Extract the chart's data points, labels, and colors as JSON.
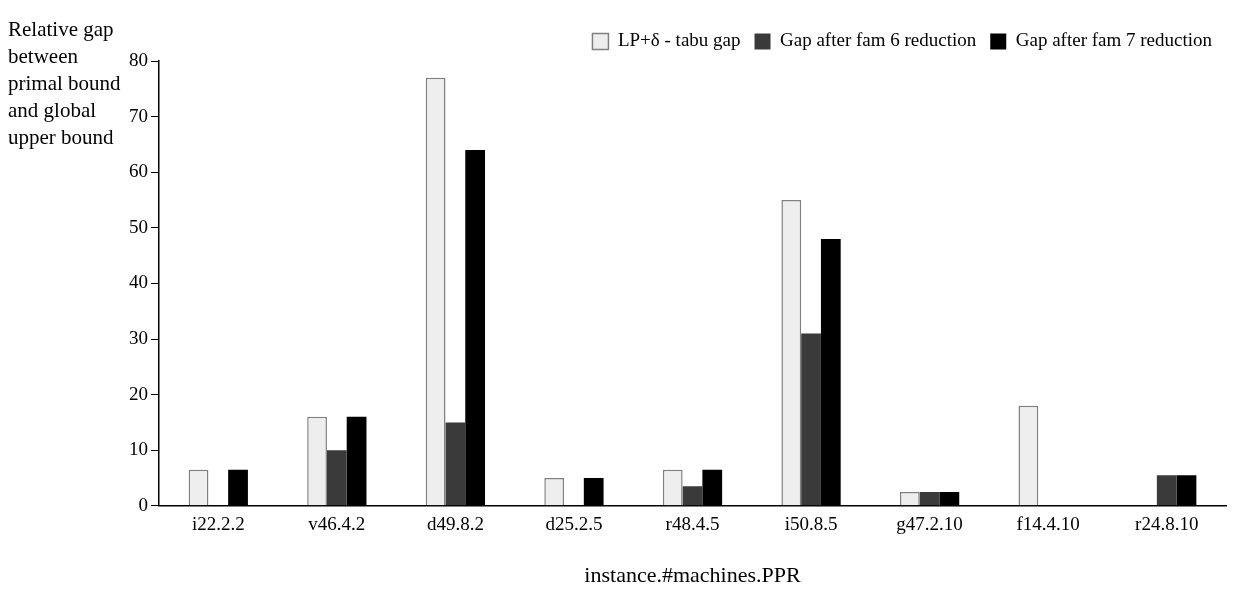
{
  "chart_data": {
    "type": "bar",
    "xlabel": "instance.#machines.PPR",
    "ylabel": "Relative gap between primal bound and global upper bound",
    "categories": [
      "i22.2.2",
      "v46.4.2",
      "d49.8.2",
      "d25.2.5",
      "r48.4.5",
      "i50.8.5",
      "g47.2.10",
      "f14.4.10",
      "r24.8.10"
    ],
    "series": [
      {
        "name": "LP+δ - tabu gap",
        "color": "#eeeeee",
        "values": [
          6.5,
          16,
          77,
          5,
          6.5,
          55,
          2.5,
          18,
          0
        ]
      },
      {
        "name": "Gap after fam 6 reduction",
        "color": "#3a3a3a",
        "values": [
          0,
          10,
          15,
          0,
          3.5,
          31,
          2.5,
          0,
          5.5
        ]
      },
      {
        "name": "Gap after fam 7 reduction",
        "color": "#000000",
        "values": [
          6.5,
          16,
          64,
          5,
          6.5,
          48,
          2.5,
          0,
          5.5
        ]
      }
    ],
    "ylim": [
      0,
      80
    ],
    "yticks": [
      0,
      10,
      20,
      30,
      40,
      50,
      60,
      70,
      80
    ],
    "grid": false,
    "legend": "top right"
  }
}
